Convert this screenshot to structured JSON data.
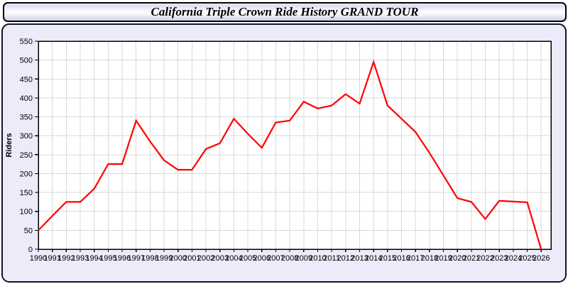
{
  "title": "California Triple Crown Ride History GRAND TOUR",
  "colors": {
    "page_bg": "#ffffff",
    "panel_bg": "#ebebfa",
    "panel_border": "#14142a",
    "plot_bg": "#ffffff",
    "plot_border": "#000000",
    "grid": "#d8d8d8",
    "tick_label": "#000000",
    "line": "#ff0000"
  },
  "chart_data": {
    "type": "line",
    "title": "California Triple Crown Ride History GRAND TOUR",
    "xlabel": "",
    "ylabel": "Riders",
    "ylim": [
      0,
      550
    ],
    "ytick_step": 50,
    "xlim": [
      1990,
      2026
    ],
    "grid": true,
    "legend": false,
    "line_color": "#ff0000",
    "x": [
      1990,
      1991,
      1992,
      1993,
      1994,
      1995,
      1996,
      1997,
      1998,
      1999,
      2000,
      2001,
      2002,
      2003,
      2004,
      2005,
      2006,
      2007,
      2008,
      2009,
      2010,
      2011,
      2012,
      2013,
      2014,
      2015,
      2016,
      2017,
      2018,
      2019,
      2020,
      2021,
      2022,
      2023,
      2024,
      2025,
      2026
    ],
    "values": [
      50,
      88,
      125,
      125,
      160,
      225,
      225,
      340,
      285,
      235,
      210,
      210,
      265,
      280,
      345,
      305,
      268,
      335,
      340,
      390,
      372,
      380,
      410,
      385,
      495,
      380,
      345,
      310,
      255,
      195,
      135,
      125,
      80,
      128,
      126,
      124,
      0
    ]
  }
}
